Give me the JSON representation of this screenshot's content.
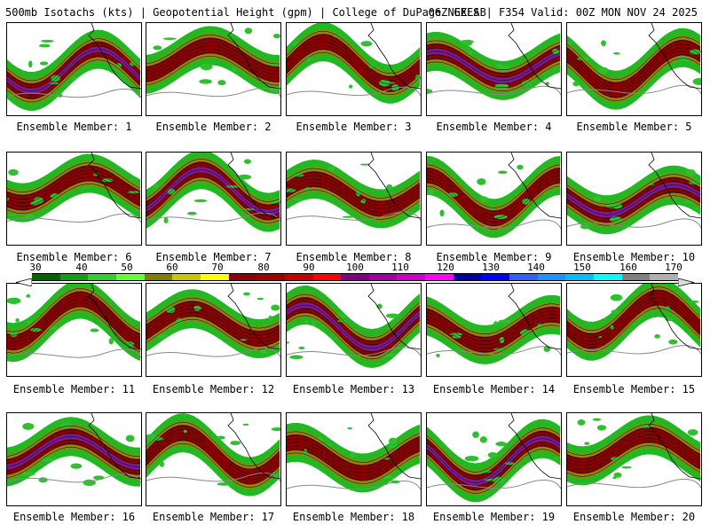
{
  "header": {
    "product": "500mb Isotachs (kts) | Geopotential Height (gpm) | College of DuPage NEXLAB",
    "run": "06Z GEFS | F354 Valid: 00Z MON NOV 24 2025"
  },
  "members": [
    {
      "label": "Ensemble Member: 1"
    },
    {
      "label": "Ensemble Member: 2"
    },
    {
      "label": "Ensemble Member: 3"
    },
    {
      "label": "Ensemble Member: 4"
    },
    {
      "label": "Ensemble Member: 5"
    },
    {
      "label": "Ensemble Member: 6"
    },
    {
      "label": "Ensemble Member: 7"
    },
    {
      "label": "Ensemble Member: 8"
    },
    {
      "label": "Ensemble Member: 9"
    },
    {
      "label": "Ensemble Member: 10"
    },
    {
      "label": "Ensemble Member: 11"
    },
    {
      "label": "Ensemble Member: 12"
    },
    {
      "label": "Ensemble Member: 13"
    },
    {
      "label": "Ensemble Member: 14"
    },
    {
      "label": "Ensemble Member: 15"
    },
    {
      "label": "Ensemble Member: 16"
    },
    {
      "label": "Ensemble Member: 17"
    },
    {
      "label": "Ensemble Member: 18"
    },
    {
      "label": "Ensemble Member: 19"
    },
    {
      "label": "Ensemble Member: 20"
    }
  ],
  "color_scale": {
    "labels": [
      "30",
      "40",
      "50",
      "60",
      "70",
      "80",
      "90",
      "100",
      "110",
      "120",
      "130",
      "140",
      "150",
      "160",
      "170"
    ],
    "colors": [
      "#006400",
      "#1a9a1a",
      "#33cc33",
      "#66ff33",
      "#808000",
      "#c8c800",
      "#ffff00",
      "#8b0000",
      "#a00000",
      "#c80000",
      "#ff0000",
      "#800080",
      "#a000a0",
      "#c800c8",
      "#ff00ff",
      "#0000a0",
      "#0000ff",
      "#3060ff",
      "#1e90ff",
      "#00bfff",
      "#00ffff",
      "#808080",
      "#b0b0b0"
    ]
  }
}
